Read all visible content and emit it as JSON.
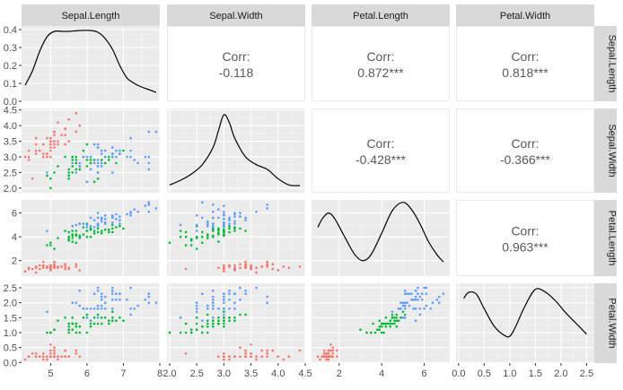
{
  "chart_data": {
    "type": "scatter",
    "title": "",
    "variables": [
      "Sepal.Length",
      "Sepal.Width",
      "Petal.Length",
      "Petal.Width"
    ],
    "group_colors": [
      "#F8766D",
      "#00BA38",
      "#619CFF"
    ],
    "panel_background": "#EBEBEB",
    "strip_background": "#D9D9D9",
    "grid": true,
    "legend": "none",
    "axes": {
      "x": [
        {
          "var": "Sepal.Length",
          "lim": [
            4.2,
            8.0
          ],
          "ticks": [
            5,
            6,
            7,
            8
          ],
          "tick_labels": [
            "5",
            "6",
            "7",
            "8"
          ]
        },
        {
          "var": "Sepal.Width",
          "lim": [
            1.95,
            4.5
          ],
          "ticks": [
            2.0,
            2.5,
            3.0,
            3.5,
            4.0,
            4.5
          ],
          "tick_labels": [
            "2.0",
            "2.5",
            "3.0",
            "3.5",
            "4.0",
            "4.5"
          ]
        },
        {
          "var": "Petal.Length",
          "lim": [
            0.7,
            7.2
          ],
          "ticks": [
            2,
            4,
            6
          ],
          "tick_labels": [
            "2",
            "4",
            "6"
          ]
        },
        {
          "var": "Petal.Width",
          "lim": [
            -0.05,
            2.65
          ],
          "ticks": [
            0.0,
            0.5,
            1.0,
            1.5,
            2.0,
            2.5
          ],
          "tick_labels": [
            "0.0",
            "0.5",
            "1.0",
            "1.5",
            "2.0",
            "2.5"
          ]
        }
      ],
      "y": [
        {
          "var": "Sepal.Length",
          "lim": [
            0,
            0.42
          ],
          "ticks": [
            0.0,
            0.1,
            0.2,
            0.3,
            0.4
          ],
          "tick_labels": [
            "0.0",
            "0.1",
            "0.2",
            "0.3",
            "0.4"
          ]
        },
        {
          "var": "Sepal.Width",
          "lim": [
            1.85,
            4.55
          ],
          "ticks": [
            2.0,
            2.5,
            3.0,
            3.5,
            4.0,
            4.5
          ],
          "tick_labels": [
            "2.0",
            "2.5",
            "3.0",
            "3.5",
            "4.0",
            "4.5"
          ]
        },
        {
          "var": "Petal.Length",
          "lim": [
            0.7,
            7.1
          ],
          "ticks": [
            2,
            4,
            6
          ],
          "tick_labels": [
            "2",
            "4",
            "6"
          ]
        },
        {
          "var": "Petal.Width",
          "lim": [
            -0.02,
            2.65
          ],
          "ticks": [
            0.0,
            0.5,
            1.0,
            1.5,
            2.0,
            2.5
          ],
          "tick_labels": [
            "0.0",
            "0.5",
            "1.0",
            "1.5",
            "2.0",
            "2.5"
          ]
        }
      ]
    },
    "correlations": [
      {
        "row": 0,
        "col": 1,
        "label": "Corr:",
        "value": "-0.118"
      },
      {
        "row": 0,
        "col": 2,
        "label": "Corr:",
        "value": "0.872***"
      },
      {
        "row": 0,
        "col": 3,
        "label": "Corr:",
        "value": "0.818***"
      },
      {
        "row": 1,
        "col": 2,
        "label": "Corr:",
        "value": "-0.428***"
      },
      {
        "row": 1,
        "col": 3,
        "label": "Corr:",
        "value": "-0.366***"
      },
      {
        "row": 2,
        "col": 3,
        "label": "Corr:",
        "value": "0.963***"
      }
    ],
    "densities": [
      {
        "var": "Sepal.Length",
        "x": [
          4.3,
          4.5,
          4.7,
          4.9,
          5.1,
          5.3,
          5.5,
          5.8,
          6.1,
          6.3,
          6.5,
          6.7,
          6.9,
          7.1,
          7.3,
          7.5,
          7.7,
          7.9
        ],
        "y": [
          0.09,
          0.17,
          0.28,
          0.36,
          0.39,
          0.39,
          0.39,
          0.395,
          0.395,
          0.385,
          0.35,
          0.29,
          0.2,
          0.13,
          0.1,
          0.08,
          0.065,
          0.05
        ]
      },
      {
        "var": "Sepal.Width",
        "x": [
          2.0,
          2.2,
          2.4,
          2.6,
          2.8,
          2.9,
          3.0,
          3.1,
          3.2,
          3.4,
          3.6,
          3.8,
          4.0,
          4.2,
          4.4
        ],
        "y": [
          2.1,
          2.25,
          2.45,
          2.75,
          3.3,
          3.85,
          4.35,
          4.1,
          3.6,
          3.0,
          2.75,
          2.6,
          2.3,
          2.1,
          2.08
        ]
      },
      {
        "var": "Petal.Length",
        "x": [
          1.0,
          1.2,
          1.5,
          1.8,
          2.2,
          2.7,
          3.1,
          3.5,
          4.0,
          4.5,
          5.0,
          5.4,
          5.8,
          6.2,
          6.6,
          6.9
        ],
        "y": [
          4.8,
          5.5,
          6.0,
          5.5,
          4.2,
          2.6,
          2.0,
          2.5,
          4.3,
          6.2,
          6.9,
          6.3,
          5.1,
          3.6,
          2.5,
          1.9
        ]
      },
      {
        "var": "Petal.Width",
        "x": [
          0.1,
          0.2,
          0.35,
          0.5,
          0.7,
          0.9,
          1.0,
          1.1,
          1.3,
          1.5,
          1.7,
          1.9,
          2.1,
          2.3,
          2.5
        ],
        "y": [
          2.15,
          2.35,
          2.28,
          1.8,
          1.2,
          0.9,
          0.88,
          1.15,
          1.9,
          2.45,
          2.35,
          2.05,
          1.65,
          1.3,
          0.95
        ]
      }
    ],
    "species": [
      {
        "color": "#F8766D",
        "sepal_length": [
          5.1,
          4.9,
          4.7,
          4.6,
          5.0,
          5.4,
          4.6,
          5.0,
          4.4,
          4.9,
          5.4,
          4.8,
          4.8,
          4.3,
          5.8,
          5.7,
          5.4,
          5.1,
          5.7,
          5.1,
          5.4,
          5.1,
          4.6,
          5.1,
          4.8,
          5.0,
          5.0,
          5.2,
          5.2,
          4.7,
          4.8,
          5.4,
          5.2,
          5.5,
          4.9,
          5.0,
          5.5,
          4.9,
          4.4,
          5.1,
          5.0,
          4.5,
          4.4,
          5.0,
          5.1,
          4.8,
          5.1,
          4.6,
          5.3,
          5.0
        ],
        "sepal_width": [
          3.5,
          3.0,
          3.2,
          3.1,
          3.6,
          3.9,
          3.4,
          3.4,
          2.9,
          3.1,
          3.7,
          3.4,
          3.0,
          3.0,
          4.0,
          4.4,
          3.9,
          3.5,
          3.8,
          3.8,
          3.4,
          3.7,
          3.6,
          3.3,
          3.4,
          3.0,
          3.4,
          3.5,
          3.4,
          3.2,
          3.1,
          3.4,
          4.1,
          4.2,
          3.1,
          3.2,
          3.5,
          3.6,
          3.0,
          3.4,
          3.5,
          2.3,
          3.2,
          3.5,
          3.8,
          3.0,
          3.8,
          3.2,
          3.7,
          3.3
        ],
        "petal_length": [
          1.4,
          1.4,
          1.3,
          1.5,
          1.4,
          1.7,
          1.4,
          1.5,
          1.4,
          1.5,
          1.5,
          1.6,
          1.4,
          1.1,
          1.2,
          1.5,
          1.3,
          1.4,
          1.7,
          1.5,
          1.7,
          1.5,
          1.0,
          1.7,
          1.9,
          1.6,
          1.6,
          1.5,
          1.4,
          1.6,
          1.6,
          1.5,
          1.5,
          1.4,
          1.5,
          1.2,
          1.3,
          1.4,
          1.3,
          1.5,
          1.3,
          1.3,
          1.3,
          1.6,
          1.9,
          1.4,
          1.6,
          1.4,
          1.5,
          1.4
        ],
        "petal_width": [
          0.2,
          0.2,
          0.2,
          0.2,
          0.2,
          0.4,
          0.3,
          0.2,
          0.2,
          0.1,
          0.2,
          0.2,
          0.1,
          0.1,
          0.2,
          0.4,
          0.4,
          0.3,
          0.3,
          0.3,
          0.2,
          0.4,
          0.2,
          0.5,
          0.2,
          0.2,
          0.4,
          0.2,
          0.2,
          0.2,
          0.2,
          0.4,
          0.1,
          0.2,
          0.2,
          0.2,
          0.2,
          0.1,
          0.2,
          0.2,
          0.3,
          0.3,
          0.2,
          0.6,
          0.4,
          0.3,
          0.2,
          0.2,
          0.2,
          0.2
        ]
      },
      {
        "color": "#00BA38",
        "sepal_length": [
          7.0,
          6.4,
          6.9,
          5.5,
          6.5,
          5.7,
          6.3,
          4.9,
          6.6,
          5.2,
          5.0,
          5.9,
          6.0,
          6.1,
          5.6,
          6.7,
          5.6,
          5.8,
          6.2,
          5.6,
          5.9,
          6.1,
          6.3,
          6.1,
          6.4,
          6.6,
          6.8,
          6.7,
          6.0,
          5.7,
          5.5,
          5.5,
          5.8,
          6.0,
          5.4,
          6.0,
          6.7,
          6.3,
          5.6,
          5.5,
          5.5,
          6.1,
          5.8,
          5.0,
          5.6,
          5.7,
          5.7,
          6.2,
          5.1,
          5.7
        ],
        "sepal_width": [
          3.2,
          3.2,
          3.1,
          2.3,
          2.8,
          2.8,
          3.3,
          2.4,
          2.9,
          2.7,
          2.0,
          3.0,
          2.2,
          2.9,
          2.9,
          3.1,
          3.0,
          2.7,
          2.2,
          2.5,
          3.2,
          2.8,
          2.5,
          2.8,
          2.9,
          3.0,
          2.8,
          3.0,
          2.9,
          2.6,
          2.4,
          2.4,
          2.7,
          2.7,
          3.0,
          3.4,
          3.1,
          2.3,
          3.0,
          2.5,
          2.6,
          3.0,
          2.6,
          2.3,
          2.7,
          3.0,
          2.9,
          2.9,
          2.5,
          2.8
        ],
        "petal_length": [
          4.7,
          4.5,
          4.9,
          4.0,
          4.6,
          4.5,
          4.7,
          3.3,
          4.6,
          3.9,
          3.5,
          4.2,
          4.0,
          4.7,
          3.6,
          4.4,
          4.5,
          4.1,
          4.5,
          3.9,
          4.8,
          4.0,
          4.9,
          4.7,
          4.3,
          4.4,
          4.8,
          5.0,
          4.5,
          3.5,
          3.8,
          3.7,
          3.9,
          5.1,
          4.5,
          4.5,
          4.7,
          4.4,
          4.1,
          4.0,
          4.4,
          4.6,
          4.0,
          3.3,
          4.2,
          4.2,
          4.2,
          4.3,
          3.0,
          4.1
        ],
        "petal_width": [
          1.4,
          1.5,
          1.5,
          1.3,
          1.5,
          1.3,
          1.6,
          1.0,
          1.3,
          1.4,
          1.0,
          1.5,
          1.0,
          1.4,
          1.3,
          1.4,
          1.5,
          1.0,
          1.5,
          1.1,
          1.8,
          1.3,
          1.5,
          1.2,
          1.3,
          1.4,
          1.4,
          1.7,
          1.5,
          1.0,
          1.1,
          1.0,
          1.2,
          1.6,
          1.5,
          1.6,
          1.5,
          1.3,
          1.3,
          1.3,
          1.2,
          1.4,
          1.2,
          1.0,
          1.3,
          1.2,
          1.3,
          1.3,
          1.1,
          1.3
        ]
      },
      {
        "color": "#619CFF",
        "sepal_length": [
          6.3,
          5.8,
          7.1,
          6.3,
          6.5,
          7.6,
          4.9,
          7.3,
          6.7,
          7.2,
          6.5,
          6.4,
          6.8,
          5.7,
          5.8,
          6.4,
          6.5,
          7.7,
          7.7,
          6.0,
          6.9,
          5.6,
          7.7,
          6.3,
          6.7,
          7.2,
          6.2,
          6.1,
          6.4,
          7.2,
          7.4,
          7.9,
          6.4,
          6.3,
          6.1,
          7.7,
          6.3,
          6.4,
          6.0,
          6.9,
          6.7,
          6.9,
          5.8,
          6.8,
          6.7,
          6.7,
          6.3,
          6.5,
          6.2,
          5.9
        ],
        "sepal_width": [
          3.3,
          2.7,
          3.0,
          2.9,
          3.0,
          3.0,
          2.5,
          2.9,
          2.5,
          3.6,
          3.2,
          2.7,
          3.0,
          2.5,
          2.8,
          3.2,
          3.0,
          3.8,
          2.6,
          2.2,
          3.2,
          2.8,
          2.8,
          2.7,
          3.3,
          3.2,
          2.8,
          3.0,
          2.8,
          3.0,
          2.8,
          3.8,
          2.8,
          2.8,
          2.6,
          3.0,
          3.4,
          3.1,
          3.0,
          3.1,
          3.1,
          3.1,
          2.7,
          3.2,
          3.3,
          3.0,
          2.5,
          3.0,
          3.4,
          3.0
        ],
        "petal_length": [
          6.0,
          5.1,
          5.9,
          5.6,
          5.8,
          6.6,
          4.5,
          6.3,
          5.8,
          6.1,
          5.1,
          5.3,
          5.5,
          5.0,
          5.1,
          5.3,
          5.5,
          6.7,
          6.9,
          5.0,
          5.7,
          4.9,
          6.7,
          4.9,
          5.7,
          6.0,
          4.8,
          4.9,
          5.6,
          5.8,
          6.1,
          6.4,
          5.6,
          5.1,
          5.6,
          6.1,
          5.6,
          5.5,
          4.8,
          5.4,
          5.6,
          5.1,
          5.1,
          5.9,
          5.7,
          5.2,
          5.0,
          5.2,
          5.4,
          5.1
        ],
        "petal_width": [
          2.5,
          1.9,
          2.1,
          1.8,
          2.2,
          2.1,
          1.7,
          1.8,
          1.8,
          2.5,
          2.0,
          1.9,
          2.1,
          2.0,
          2.4,
          2.3,
          1.8,
          2.2,
          2.3,
          1.5,
          2.3,
          2.0,
          2.0,
          1.8,
          2.1,
          1.8,
          1.8,
          1.8,
          2.1,
          1.6,
          1.9,
          2.0,
          2.2,
          1.5,
          1.4,
          2.3,
          2.4,
          1.8,
          1.8,
          2.1,
          2.4,
          2.3,
          1.9,
          2.3,
          2.5,
          2.3,
          1.9,
          2.0,
          2.3,
          1.8
        ]
      }
    ]
  }
}
